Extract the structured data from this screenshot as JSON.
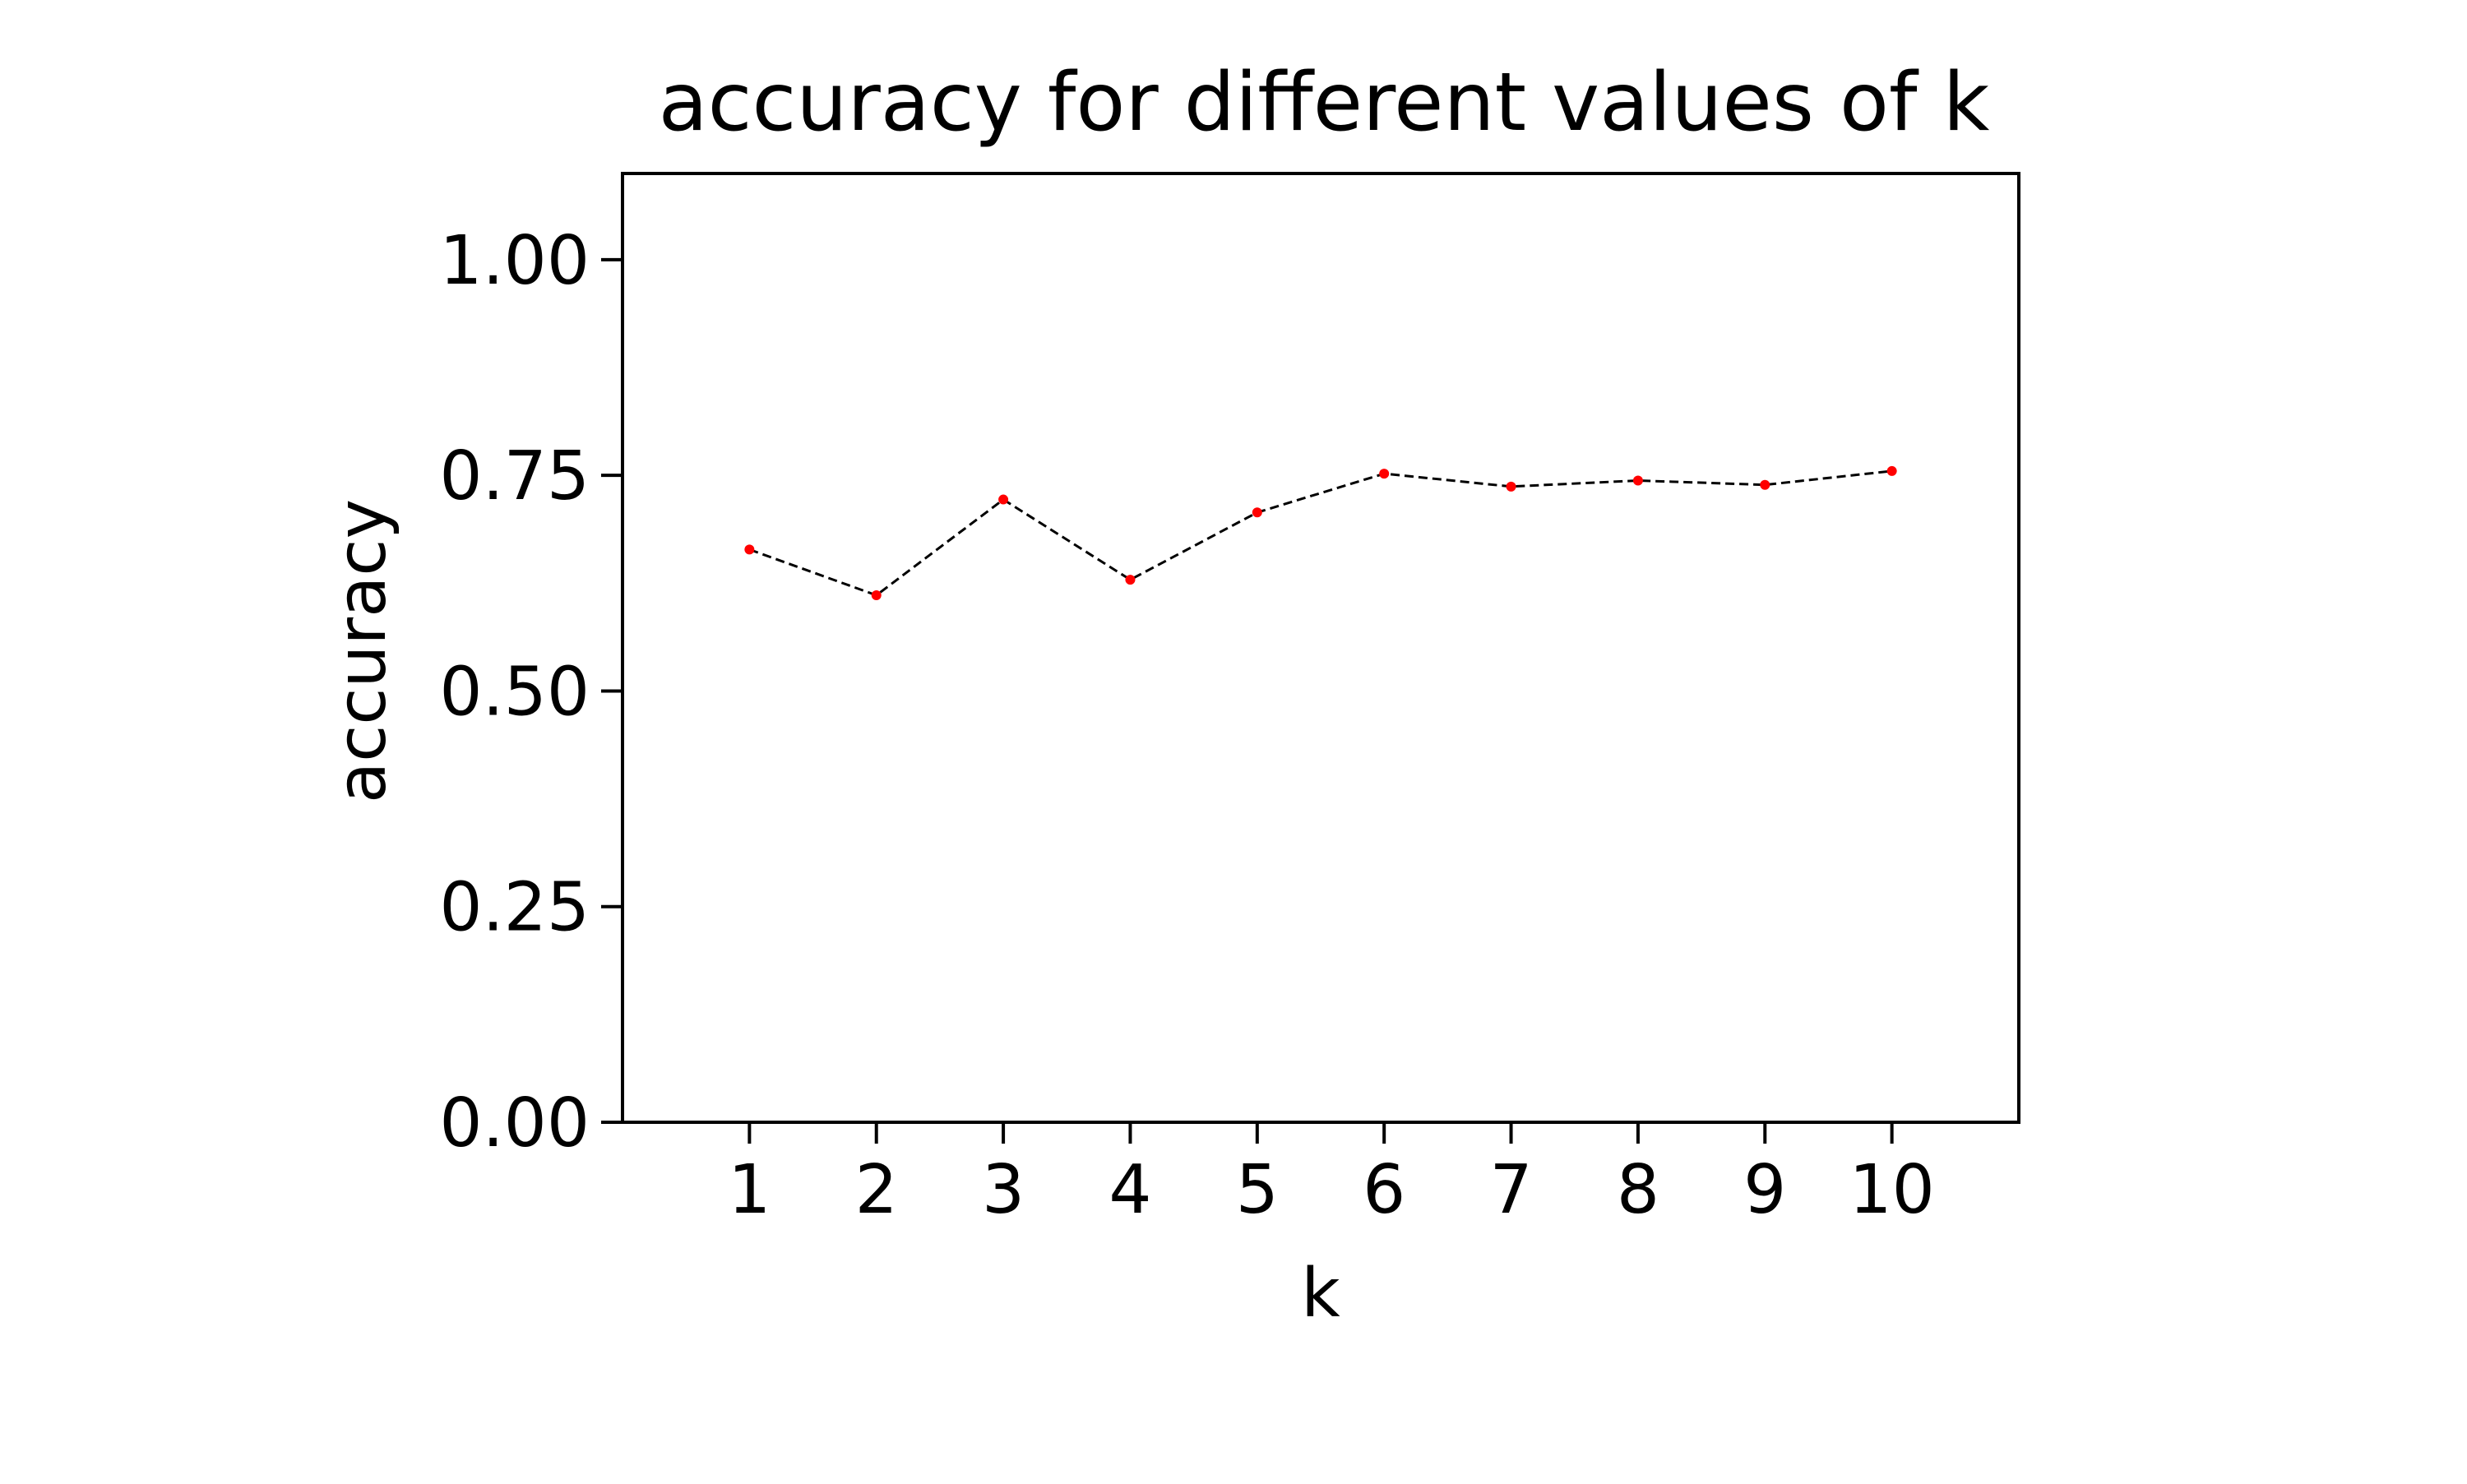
{
  "chart_data": {
    "type": "line",
    "title": "accuracy for different values of k",
    "xlabel": "k",
    "ylabel": "accuracy",
    "x": [
      1,
      2,
      3,
      4,
      5,
      6,
      7,
      8,
      9,
      10
    ],
    "series": [
      {
        "values": [
          0.664,
          0.611,
          0.722,
          0.629,
          0.707,
          0.752,
          0.737,
          0.744,
          0.739,
          0.755
        ],
        "line_color": "#000000",
        "line_style": "dashed",
        "marker_color": "#ff0000",
        "marker": "point"
      }
    ],
    "xlim": [
      0,
      11
    ],
    "ylim": [
      0,
      1.1
    ],
    "xticks": [
      "1",
      "2",
      "3",
      "4",
      "5",
      "6",
      "7",
      "8",
      "9",
      "10"
    ],
    "yticks": [
      "0.00",
      "0.25",
      "0.50",
      "0.75",
      "1.00"
    ],
    "ytick_values": [
      0,
      0.25,
      0.5,
      0.75,
      1.0
    ],
    "grid": false,
    "legend": "none"
  }
}
